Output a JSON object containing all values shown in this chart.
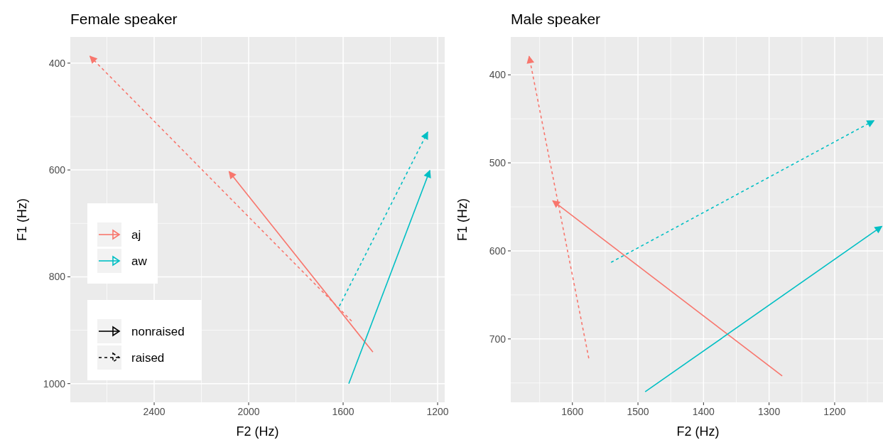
{
  "chart_data": [
    {
      "type": "line",
      "title": "Female speaker",
      "xlabel": "F2 (Hz)",
      "ylabel": "F1 (Hz)",
      "xlim": [
        2755,
        1170
      ],
      "ylim": [
        1035,
        351
      ],
      "xticks": [
        2400,
        2000,
        1600,
        1200
      ],
      "yticks": [
        400,
        600,
        800,
        1000
      ],
      "grid": true,
      "legend": "bottom left",
      "annotations": [
        "nonraised",
        "raised"
      ],
      "series": [
        {
          "name": "aj",
          "color": "#f8766d",
          "line_style": "solid",
          "x": [
            1474,
            2083
          ],
          "values": [
            941,
            603
          ]
        },
        {
          "color": "#f8766d",
          "line_style": "dashed",
          "x": [
            1564,
            2672
          ],
          "values": [
            883,
            387
          ]
        },
        {
          "name": "aw",
          "color": "#00bfc4",
          "line_style": "solid",
          "x": [
            1576,
            1233
          ],
          "values": [
            1000,
            601
          ]
        },
        {
          "color": "#00bfc4",
          "line_style": "dashed",
          "x": [
            1616,
            1242
          ],
          "values": [
            855,
            529
          ]
        }
      ]
    },
    {
      "type": "line",
      "title": "Male speaker",
      "xlabel": "F2 (Hz)",
      "ylabel": "F1 (Hz)",
      "xlim": [
        1694,
        1123
      ],
      "ylim": [
        772,
        357
      ],
      "xticks": [
        1600,
        1500,
        1400,
        1300,
        1200
      ],
      "yticks": [
        400,
        500,
        600,
        700
      ],
      "grid": true,
      "series": [
        {
          "color": "#f8766d",
          "line_style": "solid",
          "x": [
            1280,
            1630
          ],
          "values": [
            742,
            543
          ]
        },
        {
          "color": "#f8766d",
          "line_style": "dashed",
          "x": [
            1575,
            1666
          ],
          "values": [
            722,
            379
          ]
        },
        {
          "color": "#00bfc4",
          "line_style": "solid",
          "x": [
            1489,
            1128
          ],
          "values": [
            760,
            572
          ]
        },
        {
          "color": "#00bfc4",
          "line_style": "dashed",
          "x": [
            1541,
            1140
          ],
          "values": [
            613,
            452
          ]
        }
      ]
    }
  ]
}
